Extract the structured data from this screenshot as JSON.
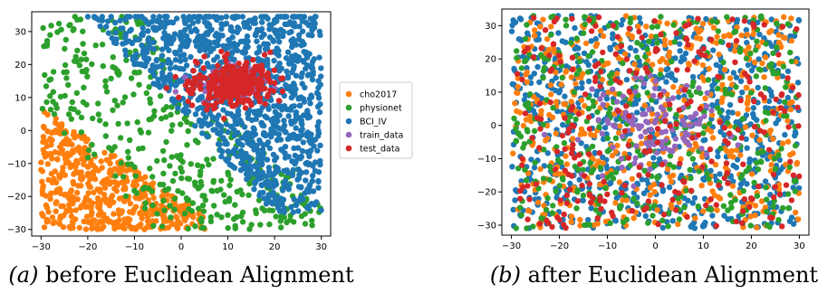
{
  "palette": {
    "cho2017": "#ff7f0e",
    "physionet": "#2ca02c",
    "BCI_IV": "#1f77b4",
    "train_data": "#9467bd",
    "test_data": "#d62728"
  },
  "chart_data": [
    {
      "type": "scatter",
      "caption_tag": "(a)",
      "caption_text": "before Euclidean Alignment",
      "xlim": [
        -32,
        32
      ],
      "ylim": [
        -32,
        36
      ],
      "x_ticks": [
        -30,
        -20,
        -10,
        0,
        10,
        20,
        30
      ],
      "y_ticks": [
        -30,
        -20,
        -10,
        0,
        10,
        20,
        30
      ],
      "grid": false,
      "legend": {
        "placement": "right",
        "entries": [
          "cho2017",
          "physionet",
          "BCI_IV",
          "train_data",
          "test_data"
        ]
      },
      "series": [
        {
          "name": "cho2017",
          "count": 500,
          "region": {
            "type": "bottom-left",
            "x_range": [
              -30,
              5
            ],
            "y_range": [
              -30,
              10
            ]
          }
        },
        {
          "name": "physionet",
          "count": 400,
          "region": {
            "type": "left-band",
            "x_range": [
              -30,
              30
            ],
            "y_range": [
              -30,
              35
            ]
          }
        },
        {
          "name": "BCI_IV",
          "count": 1100,
          "region": {
            "type": "top-right",
            "x_range": [
              -20,
              30
            ],
            "y_range": [
              -25,
              36
            ]
          }
        },
        {
          "name": "train_data",
          "count": 60,
          "region": {
            "type": "cluster",
            "center": [
              10,
              14
            ],
            "spread": [
              8,
              6
            ]
          }
        },
        {
          "name": "test_data",
          "count": 300,
          "region": {
            "type": "cluster",
            "center": [
              11,
              14
            ],
            "spread": [
              9,
              7
            ]
          }
        }
      ]
    },
    {
      "type": "scatter",
      "caption_tag": "(b)",
      "caption_text": "after Euclidean Alignment",
      "xlim": [
        -32,
        32
      ],
      "ylim": [
        -33,
        35
      ],
      "x_ticks": [
        -30,
        -20,
        -10,
        0,
        10,
        20,
        30
      ],
      "y_ticks": [
        -30,
        -20,
        -10,
        0,
        10,
        20,
        30
      ],
      "grid": false,
      "series": [
        {
          "name": "cho2017",
          "count": 500,
          "region": {
            "type": "uniform",
            "x_range": [
              -30,
              30
            ],
            "y_range": [
              -31,
              33
            ]
          }
        },
        {
          "name": "physionet",
          "count": 400,
          "region": {
            "type": "uniform",
            "x_range": [
              -30,
              30
            ],
            "y_range": [
              -31,
              33
            ]
          }
        },
        {
          "name": "BCI_IV",
          "count": 800,
          "region": {
            "type": "uniform",
            "x_range": [
              -30,
              30
            ],
            "y_range": [
              -31,
              33
            ]
          }
        },
        {
          "name": "train_data",
          "count": 120,
          "region": {
            "type": "cluster",
            "center": [
              0,
              0
            ],
            "spread": [
              14,
              14
            ]
          }
        },
        {
          "name": "test_data",
          "count": 260,
          "region": {
            "type": "uniform",
            "x_range": [
              -30,
              30
            ],
            "y_range": [
              -31,
              33
            ]
          }
        }
      ]
    }
  ]
}
